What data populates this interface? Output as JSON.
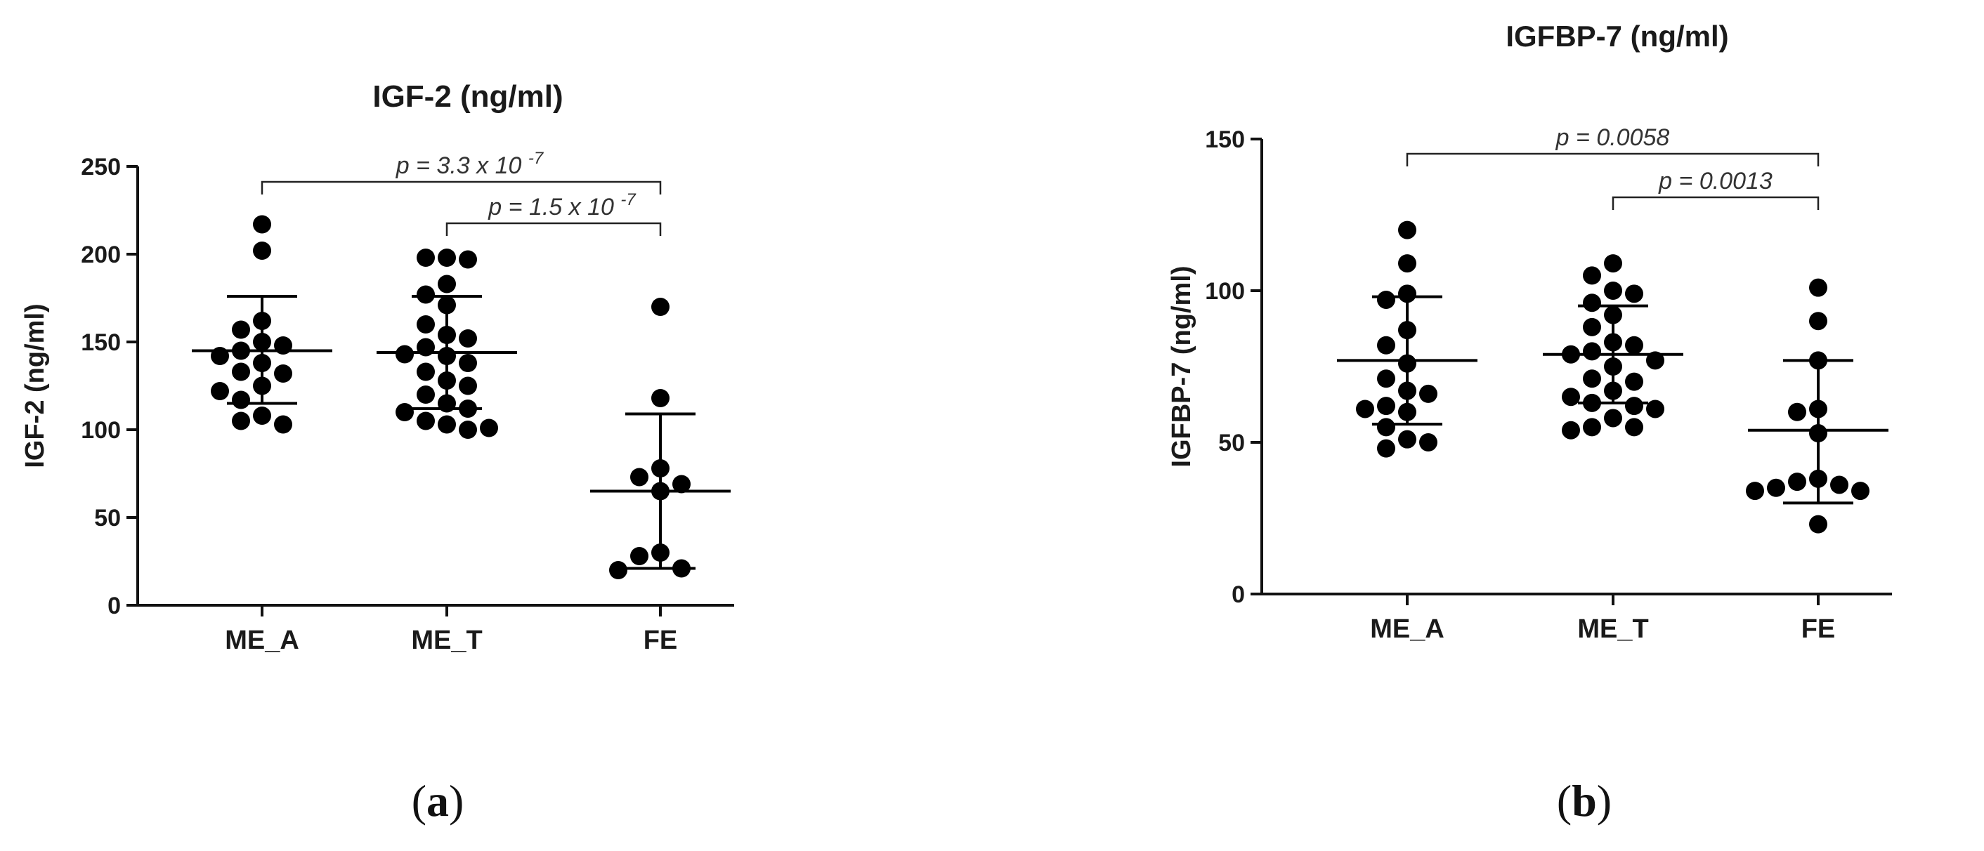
{
  "chart_data": [
    {
      "type": "scatter",
      "panel_label": "(a)",
      "panel_label_parts": [
        "(",
        "a",
        ")"
      ],
      "title": "IGF-2 (ng/ml)",
      "xlabel": "",
      "ylabel": "IGF-2 (ng/ml)",
      "ylim": [
        0,
        250
      ],
      "yticks": [
        0,
        50,
        100,
        150,
        200,
        250
      ],
      "categories": [
        "ME_A",
        "ME_T",
        "FE"
      ],
      "grid": false,
      "legend": "none",
      "series": [
        {
          "category": "ME_A",
          "values": [
            217,
            202,
            162,
            157,
            150,
            148,
            145,
            142,
            138,
            133,
            132,
            125,
            122,
            117,
            108,
            105,
            103
          ],
          "mean": 145,
          "sd_upper": 176,
          "sd_lower": 115
        },
        {
          "category": "ME_T",
          "values": [
            198,
            198,
            197,
            183,
            177,
            171,
            160,
            154,
            152,
            147,
            143,
            142,
            138,
            133,
            128,
            125,
            120,
            115,
            112,
            110,
            105,
            103,
            101,
            100
          ],
          "mean": 144,
          "sd_upper": 176,
          "sd_lower": 112
        },
        {
          "category": "FE",
          "values": [
            170,
            118,
            78,
            73,
            69,
            65,
            30,
            28,
            21,
            20
          ],
          "mean": 65,
          "sd_upper": 109,
          "sd_lower": 21
        }
      ],
      "annotations": [
        {
          "from": "ME_A",
          "to": "FE",
          "base": "p = 3.3 x 10 ",
          "exp": "-7"
        },
        {
          "from": "ME_T",
          "to": "FE",
          "base": "p = 1.5 x 10 ",
          "exp": "-7"
        }
      ]
    },
    {
      "type": "scatter",
      "panel_label": "(b)",
      "panel_label_parts": [
        "(",
        "b",
        ")"
      ],
      "title": "IGFBP-7 (ng/ml)",
      "xlabel": "",
      "ylabel": "IGFBP-7 (ng/ml)",
      "ylim": [
        0,
        150
      ],
      "yticks": [
        0,
        50,
        100,
        150
      ],
      "categories": [
        "ME_A",
        "ME_T",
        "FE"
      ],
      "grid": false,
      "legend": "none",
      "series": [
        {
          "category": "ME_A",
          "values": [
            120,
            109,
            99,
            97,
            87,
            82,
            76,
            71,
            67,
            66,
            62,
            61,
            60,
            55,
            51,
            50,
            48
          ],
          "mean": 77,
          "sd_upper": 98,
          "sd_lower": 56
        },
        {
          "category": "ME_T",
          "values": [
            109,
            105,
            100,
            99,
            96,
            92,
            88,
            83,
            82,
            80,
            79,
            77,
            75,
            71,
            70,
            67,
            65,
            63,
            62,
            61,
            58,
            55,
            55,
            54
          ],
          "mean": 79,
          "sd_upper": 95,
          "sd_lower": 63
        },
        {
          "category": "FE",
          "values": [
            101,
            90,
            77,
            61,
            60,
            53,
            38,
            37,
            36,
            35,
            34,
            34,
            23
          ],
          "mean": 54,
          "sd_upper": 77,
          "sd_lower": 30
        }
      ],
      "annotations": [
        {
          "from": "ME_A",
          "to": "FE",
          "base": "p = 0.0058",
          "exp": ""
        },
        {
          "from": "ME_T",
          "to": "FE",
          "base": "p = 0.0013",
          "exp": ""
        }
      ]
    }
  ]
}
